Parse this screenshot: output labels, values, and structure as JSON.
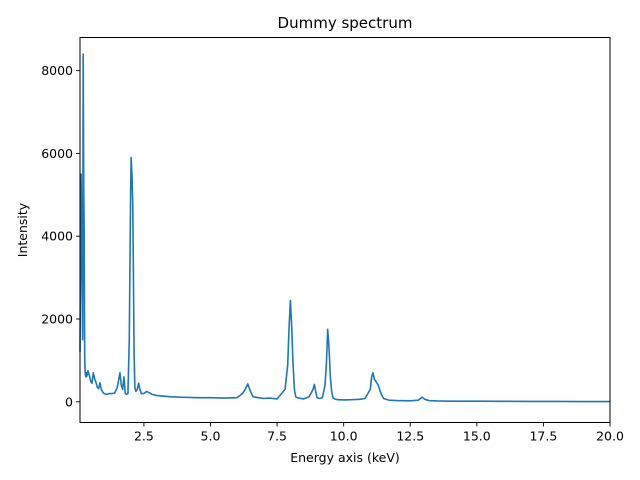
{
  "chart_data": {
    "type": "line",
    "title": "Dummy spectrum",
    "xlabel": "Energy axis (keV)",
    "ylabel": "Intensity",
    "xlim": [
      0.1,
      20.0
    ],
    "ylim": [
      -500,
      8800
    ],
    "grid": false,
    "legend": "none",
    "x_ticks": [
      2.5,
      5.0,
      7.5,
      10.0,
      12.5,
      15.0,
      17.5,
      20.0
    ],
    "x_tick_labels": [
      "2.5",
      "5.0",
      "7.5",
      "10.0",
      "12.5",
      "15.0",
      "17.5",
      "20.0"
    ],
    "y_ticks": [
      0,
      2000,
      4000,
      6000,
      8000
    ],
    "y_tick_labels": [
      "0",
      "2000",
      "4000",
      "6000",
      "8000"
    ],
    "series": [
      {
        "color": "#1f77b4",
        "x": [
          0.1,
          0.14,
          0.18,
          0.2,
          0.22,
          0.24,
          0.26,
          0.27,
          0.28,
          0.29,
          0.3,
          0.32,
          0.34,
          0.36,
          0.4,
          0.45,
          0.5,
          0.55,
          0.6,
          0.65,
          0.7,
          0.75,
          0.8,
          0.85,
          0.9,
          0.95,
          1.0,
          1.05,
          1.1,
          1.2,
          1.3,
          1.4,
          1.5,
          1.6,
          1.65,
          1.7,
          1.75,
          1.8,
          1.85,
          1.9,
          1.95,
          2.0,
          2.02,
          2.05,
          2.08,
          2.1,
          2.13,
          2.16,
          2.2,
          2.25,
          2.3,
          2.35,
          2.4,
          2.5,
          2.6,
          2.7,
          2.8,
          3.0,
          3.5,
          4.0,
          4.5,
          5.0,
          5.5,
          6.0,
          6.2,
          6.3,
          6.4,
          6.5,
          6.6,
          6.8,
          7.0,
          7.2,
          7.5,
          7.8,
          7.9,
          7.95,
          8.0,
          8.05,
          8.1,
          8.15,
          8.2,
          8.3,
          8.5,
          8.7,
          8.85,
          8.9,
          8.95,
          9.0,
          9.1,
          9.2,
          9.3,
          9.35,
          9.4,
          9.45,
          9.5,
          9.55,
          9.6,
          9.7,
          9.8,
          10.0,
          10.3,
          10.6,
          10.8,
          11.0,
          11.05,
          11.1,
          11.15,
          11.2,
          11.3,
          11.4,
          11.5,
          11.7,
          12.0,
          12.5,
          12.8,
          12.95,
          13.05,
          13.2,
          13.5,
          14.0,
          15.0,
          16.0,
          17.0,
          18.0,
          19.0,
          20.0
        ],
        "values": [
          1200,
          5500,
          2800,
          1500,
          8400,
          5200,
          3900,
          1800,
          1000,
          800,
          650,
          600,
          700,
          620,
          750,
          640,
          500,
          450,
          700,
          550,
          470,
          350,
          320,
          460,
          300,
          240,
          200,
          190,
          180,
          200,
          200,
          210,
          350,
          700,
          400,
          300,
          600,
          200,
          180,
          200,
          1500,
          5000,
          5900,
          5500,
          4800,
          3500,
          1200,
          350,
          250,
          300,
          450,
          300,
          200,
          200,
          250,
          220,
          180,
          150,
          120,
          110,
          100,
          100,
          90,
          100,
          200,
          300,
          430,
          250,
          120,
          100,
          80,
          90,
          70,
          300,
          900,
          1800,
          2450,
          1800,
          900,
          300,
          120,
          90,
          70,
          120,
          300,
          420,
          250,
          100,
          80,
          100,
          400,
          900,
          1750,
          1300,
          600,
          250,
          90,
          60,
          50,
          45,
          50,
          60,
          80,
          300,
          600,
          700,
          550,
          500,
          400,
          200,
          80,
          40,
          30,
          25,
          40,
          110,
          60,
          30,
          20,
          15,
          15,
          12,
          10,
          8,
          6,
          5
        ]
      }
    ]
  }
}
